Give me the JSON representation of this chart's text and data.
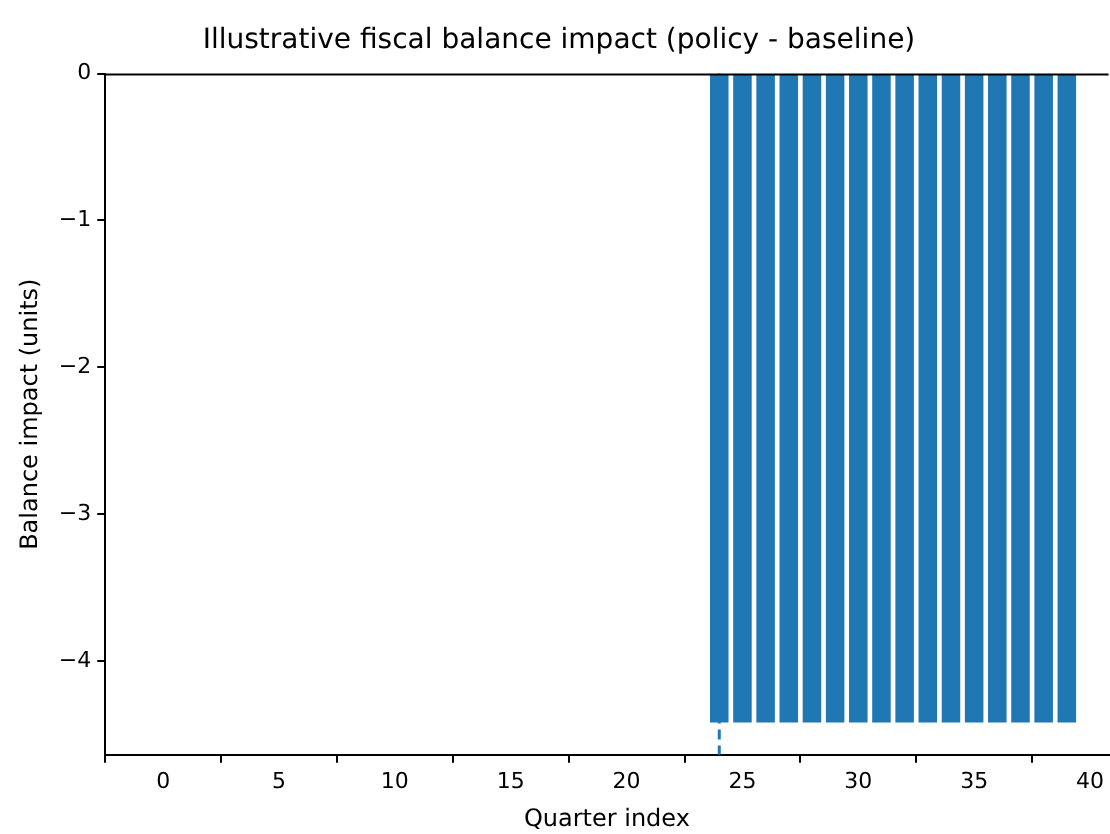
{
  "chart_data": {
    "type": "bar",
    "title": "Illustrative fiscal balance impact (policy - baseline)",
    "xlabel": "Quarter index",
    "ylabel": "Balance impact (units)",
    "x": [
      24,
      25,
      26,
      27,
      28,
      29,
      30,
      31,
      32,
      33,
      34,
      35,
      36,
      37,
      38,
      39
    ],
    "values": [
      -4.42,
      -4.42,
      -4.42,
      -4.42,
      -4.42,
      -4.42,
      -4.42,
      -4.42,
      -4.42,
      -4.42,
      -4.42,
      -4.42,
      -4.42,
      -4.42,
      -4.42,
      -4.42
    ],
    "color": "#1f77b4",
    "xlim": [
      -2.5,
      40.8
    ],
    "xticks": [
      0,
      5,
      10,
      15,
      20,
      25,
      30,
      35,
      40
    ],
    "ylim": [
      -4.64,
      0
    ],
    "yticks": [
      0,
      {
        "value": -1,
        "label": "−1"
      },
      {
        "value": -2,
        "label": "−2"
      },
      {
        "value": -3,
        "label": "−3"
      },
      {
        "value": -4,
        "label": "−4"
      }
    ],
    "ref_lines": [
      {
        "axis": "x",
        "value": 24,
        "color": "#1f77b4",
        "line_style": "dashed"
      }
    ],
    "grid": false,
    "legend": false
  }
}
